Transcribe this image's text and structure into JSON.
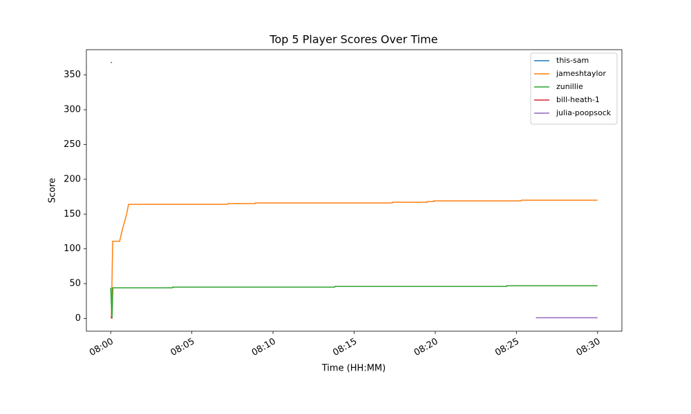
{
  "chart_data": {
    "type": "line",
    "title": "Top 5 Player Scores Over Time",
    "x_label": "Time (HH:MM)",
    "y_label": "Score",
    "xlim": [
      -1.5,
      31.5
    ],
    "xticks": [
      {
        "value": 0,
        "label": "08:00"
      },
      {
        "value": 5,
        "label": "08:05"
      },
      {
        "value": 10,
        "label": "08:10"
      },
      {
        "value": 15,
        "label": "08:15"
      },
      {
        "value": 20,
        "label": "08:20"
      },
      {
        "value": 25,
        "label": "08:25"
      },
      {
        "value": 30,
        "label": "08:30"
      }
    ],
    "ylim": [
      -18.4,
      386.4
    ],
    "yticks": [
      0,
      50,
      100,
      150,
      200,
      250,
      300,
      350
    ],
    "legend": "upper right",
    "series": [
      {
        "name": "this-sam",
        "color": "#1f77b4",
        "x": [
          0,
          0.08
        ],
        "values": [
          368,
          368
        ]
      },
      {
        "name": "jameshtaylor",
        "color": "#ff7f0e",
        "x": [
          0.04,
          0.12,
          0.55,
          0.72,
          0.98,
          1.1,
          7.2,
          7.21,
          8.9,
          8.91,
          17.35,
          17.36,
          19.5,
          19.51,
          19.9,
          19.91,
          25.3,
          25.31,
          30
        ],
        "values": [
          0,
          111,
          111,
          128,
          150,
          164,
          164,
          165,
          165,
          166,
          166,
          167,
          167,
          168,
          168,
          169,
          169,
          170,
          170
        ]
      },
      {
        "name": "zunillie",
        "color": "#2ca02c",
        "x": [
          0,
          0.08,
          0.13,
          3.8,
          3.81,
          13.8,
          13.81,
          24.4,
          24.41,
          30
        ],
        "values": [
          44,
          0,
          44,
          44,
          45,
          45,
          46,
          46,
          47,
          47
        ]
      },
      {
        "name": "bill-heath-1",
        "color": "#d62728",
        "x": [
          0,
          0.1
        ],
        "values": [
          2,
          0
        ]
      },
      {
        "name": "julia-poopsock",
        "color": "#9467bd",
        "x": [
          26.2,
          30
        ],
        "values": [
          1,
          1
        ]
      }
    ]
  }
}
